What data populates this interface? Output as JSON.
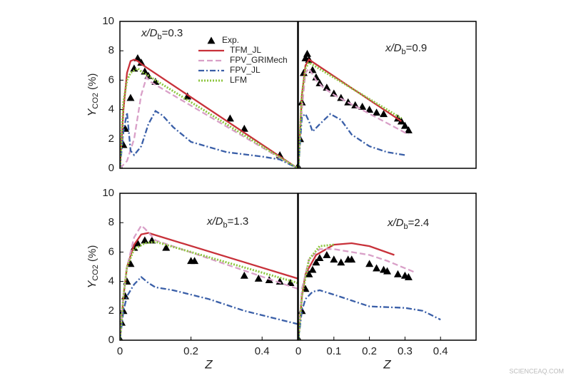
{
  "chart_data": [
    {
      "type": "line",
      "label": {
        "pre": "x/D",
        "sub": "b",
        "post": "=0.3"
      },
      "xlim": [
        0,
        0.5
      ],
      "ylim": [
        0,
        10
      ],
      "yticks": [
        0,
        2,
        4,
        6,
        8,
        10
      ],
      "ylabel": {
        "main": "Y",
        "sub": "CO2",
        "post": " (%)"
      },
      "legend": "upper center",
      "series": [
        {
          "name": "Exp.",
          "marker": "triangle",
          "color": "#000000",
          "x": [
            0,
            0.01,
            0.015,
            0.03,
            0.04,
            0.05,
            0.06,
            0.07,
            0.08,
            0.1,
            0.19,
            0.31,
            0.35,
            0.45,
            0.5
          ],
          "values": [
            0.1,
            1.6,
            2.7,
            4.8,
            6.8,
            7.5,
            7.2,
            6.6,
            6.3,
            5.9,
            4.9,
            3.4,
            2.7,
            0.9,
            0.1
          ]
        },
        {
          "name": "TFM_JL",
          "color": "#c8313a",
          "dash": "none",
          "x": [
            0,
            0.01,
            0.02,
            0.03,
            0.04,
            0.05,
            0.06,
            0.5
          ],
          "values": [
            0,
            4,
            6.5,
            7.3,
            7.4,
            7.3,
            7.1,
            0
          ]
        },
        {
          "name": "FPV_GRIMech",
          "color": "#d9a0c8",
          "dash": "8 4",
          "x": [
            0,
            0.02,
            0.04,
            0.06,
            0.075,
            0.085,
            0.5
          ],
          "values": [
            0,
            0.5,
            2,
            5,
            6.2,
            5.9,
            0
          ]
        },
        {
          "name": "FPV_JL",
          "color": "#3a5fa8",
          "dash": "8 3 2 3",
          "x": [
            0,
            0.01,
            0.02,
            0.025,
            0.03,
            0.04,
            0.06,
            0.08,
            0.1,
            0.12,
            0.15,
            0.2,
            0.3,
            0.4,
            0.45,
            0.5
          ],
          "values": [
            0,
            2.5,
            3.8,
            2.5,
            1.2,
            0.9,
            1.5,
            3,
            3.9,
            3.6,
            2.8,
            1.8,
            1.1,
            0.8,
            0.6,
            0
          ]
        },
        {
          "name": "LFM",
          "color": "#8dc63f",
          "dash": "2 2",
          "x": [
            0,
            0.01,
            0.02,
            0.03,
            0.05,
            0.06,
            0.5
          ],
          "values": [
            0,
            4.5,
            6,
            6.5,
            6.8,
            6.6,
            0
          ]
        }
      ]
    },
    {
      "type": "line",
      "label": {
        "pre": "x/D",
        "sub": "b",
        "post": "=0.9"
      },
      "xlim": [
        0,
        0.5
      ],
      "ylim": [
        0,
        10
      ],
      "series": [
        {
          "marker": "triangle",
          "color": "#000000",
          "x": [
            0,
            0.005,
            0.01,
            0.015,
            0.02,
            0.025,
            0.03,
            0.04,
            0.05,
            0.06,
            0.08,
            0.1,
            0.12,
            0.14,
            0.16,
            0.18,
            0.2,
            0.22,
            0.24,
            0.28,
            0.29,
            0.3,
            0.31
          ],
          "values": [
            0.1,
            2,
            4.5,
            6.5,
            7.5,
            7.8,
            7.4,
            6.7,
            6.2,
            5.8,
            5.5,
            5.1,
            4.8,
            4.5,
            4.3,
            4.2,
            4,
            3.8,
            3.7,
            3.4,
            3.2,
            2.9,
            2.6
          ]
        },
        {
          "color": "#c8313a",
          "dash": "none",
          "x": [
            0,
            0.01,
            0.02,
            0.03,
            0.29
          ],
          "values": [
            0,
            5,
            7,
            7.4,
            3.2
          ]
        },
        {
          "color": "#d9a0c8",
          "dash": "8 4",
          "x": [
            0,
            0.01,
            0.02,
            0.03,
            0.05,
            0.07,
            0.1,
            0.31
          ],
          "values": [
            0,
            4,
            6.5,
            6.8,
            6,
            5.5,
            5,
            2.3
          ]
        },
        {
          "color": "#3a5fa8",
          "dash": "8 3 2 3",
          "x": [
            0,
            0.01,
            0.02,
            0.03,
            0.04,
            0.06,
            0.09,
            0.12,
            0.15,
            0.2,
            0.25,
            0.3
          ],
          "values": [
            0,
            3.5,
            3.7,
            3.2,
            2.5,
            3,
            3.7,
            3.3,
            2.3,
            1.5,
            1.1,
            0.9
          ]
        },
        {
          "color": "#8dc63f",
          "dash": "2 2",
          "x": [
            0,
            0.01,
            0.02,
            0.03,
            0.29
          ],
          "values": [
            0,
            5,
            6.8,
            7.2,
            3.4
          ]
        }
      ]
    },
    {
      "type": "line",
      "label": {
        "pre": "x/D",
        "sub": "b",
        "post": "=1.3"
      },
      "xlim": [
        0,
        0.5
      ],
      "ylim": [
        0,
        10
      ],
      "yticks": [
        0,
        2,
        4,
        6,
        8,
        10
      ],
      "xticks": [
        0,
        0.2,
        0.4
      ],
      "ylabel": {
        "main": "Y",
        "sub": "CO2",
        "post": " (%)"
      },
      "xlabel": "Z",
      "series": [
        {
          "marker": "triangle",
          "color": "#000000",
          "x": [
            0,
            0.005,
            0.01,
            0.015,
            0.02,
            0.03,
            0.04,
            0.05,
            0.07,
            0.09,
            0.13,
            0.2,
            0.21,
            0.35,
            0.39,
            0.42,
            0.45,
            0.48
          ],
          "values": [
            0.1,
            1.2,
            2,
            3,
            4,
            5.2,
            6.3,
            6.6,
            6.8,
            6.8,
            6.3,
            5.4,
            5.4,
            4.4,
            4.2,
            4.1,
            4,
            3.9
          ]
        },
        {
          "color": "#c8313a",
          "dash": "none",
          "x": [
            0,
            0.01,
            0.02,
            0.04,
            0.06,
            0.08,
            0.5
          ],
          "values": [
            0,
            3,
            5,
            6.5,
            7.2,
            7.3,
            4.2
          ]
        },
        {
          "color": "#d9a0c8",
          "dash": "8 4",
          "x": [
            0,
            0.01,
            0.02,
            0.04,
            0.06,
            0.07,
            0.1,
            0.5
          ],
          "values": [
            0,
            3,
            5,
            7,
            7.8,
            7.6,
            6.8,
            3.5
          ]
        },
        {
          "color": "#3a5fa8",
          "dash": "8 3 2 3",
          "x": [
            0,
            0.01,
            0.02,
            0.04,
            0.06,
            0.08,
            0.1,
            0.15,
            0.25,
            0.35,
            0.45,
            0.5
          ],
          "values": [
            0,
            2,
            3,
            3.8,
            4.3,
            3.9,
            3.6,
            3.4,
            2.8,
            2,
            1.4,
            1.1
          ]
        },
        {
          "color": "#8dc63f",
          "dash": "2 2",
          "x": [
            0,
            0.01,
            0.02,
            0.04,
            0.07,
            0.1,
            0.5
          ],
          "values": [
            0,
            3,
            5,
            6.2,
            6.6,
            6.7,
            3.9
          ]
        }
      ]
    },
    {
      "type": "line",
      "label": {
        "pre": "x/D",
        "sub": "b",
        "post": "=2.4"
      },
      "xlim": [
        0,
        0.5
      ],
      "ylim": [
        0,
        10
      ],
      "xticks": [
        0,
        0.1,
        0.2,
        0.3,
        0.4
      ],
      "xlabel": "Z",
      "series": [
        {
          "marker": "triangle",
          "color": "#000000",
          "x": [
            0,
            0.01,
            0.02,
            0.03,
            0.04,
            0.05,
            0.06,
            0.08,
            0.1,
            0.12,
            0.14,
            0.15,
            0.2,
            0.22,
            0.24,
            0.25,
            0.28,
            0.3,
            0.31
          ],
          "values": [
            0.1,
            2,
            3.5,
            4.5,
            4.8,
            5.3,
            5.6,
            5.8,
            5.5,
            5.3,
            5.5,
            5.5,
            5.2,
            4.9,
            4.8,
            4.7,
            4.5,
            4.4,
            4.3
          ]
        },
        {
          "color": "#c8313a",
          "dash": "none",
          "x": [
            0,
            0.01,
            0.02,
            0.05,
            0.1,
            0.15,
            0.2,
            0.27
          ],
          "values": [
            0,
            3,
            4.5,
            5.8,
            6.5,
            6.6,
            6.4,
            5.8
          ]
        },
        {
          "color": "#d9a0c8",
          "dash": "8 4",
          "x": [
            0,
            0.01,
            0.03,
            0.06,
            0.1,
            0.15,
            0.2,
            0.25,
            0.33
          ],
          "values": [
            0,
            3.5,
            5.5,
            6.2,
            6.2,
            6,
            5.8,
            5.4,
            4.6
          ]
        },
        {
          "color": "#3a5fa8",
          "dash": "8 3 2 3",
          "x": [
            0,
            0.01,
            0.02,
            0.04,
            0.06,
            0.1,
            0.15,
            0.2,
            0.3,
            0.35,
            0.4
          ],
          "values": [
            0,
            2,
            2.8,
            3.3,
            3.4,
            3.1,
            2.7,
            2.3,
            2.2,
            2,
            1.4
          ]
        },
        {
          "color": "#8dc63f",
          "dash": "2 2",
          "x": [
            0,
            0.01,
            0.03,
            0.06,
            0.1
          ],
          "values": [
            0,
            3,
            5.5,
            6.4,
            6.5
          ]
        }
      ]
    }
  ],
  "watermark": "SCIENCEAQ.COM"
}
